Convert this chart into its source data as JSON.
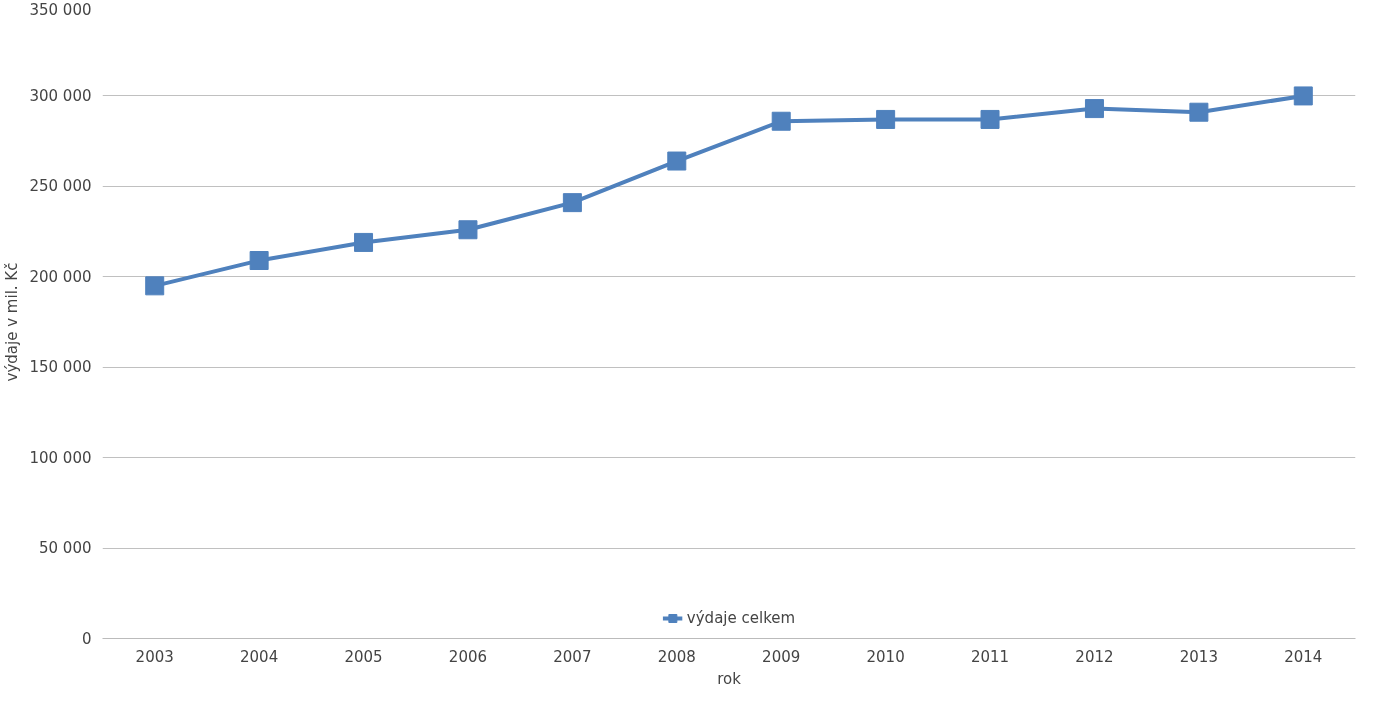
{
  "chart_data": {
    "type": "line",
    "xlabel": "rok",
    "ylabel": "výdaje v mil. Kč",
    "categories": [
      "2003",
      "2004",
      "2005",
      "2006",
      "2007",
      "2008",
      "2009",
      "2010",
      "2011",
      "2012",
      "2013",
      "2014"
    ],
    "series": [
      {
        "name": "výdaje celkem",
        "color": "#4f81bd",
        "values": [
          195000,
          209000,
          219000,
          226000,
          241000,
          264000,
          286000,
          287000,
          287000,
          293000,
          291000,
          300000
        ]
      }
    ],
    "ylim": [
      0,
      350000
    ],
    "yticks": [
      0,
      {
        "value": 50000,
        "label": "50 000"
      },
      {
        "value": 100000,
        "label": "100 000"
      },
      {
        "value": 150000,
        "label": "150 000"
      },
      {
        "value": 200000,
        "label": "200 000"
      },
      {
        "value": 250000,
        "label": "250 000"
      },
      {
        "value": 300000,
        "label": "300 000"
      },
      {
        "value": 350000,
        "label": "350 000"
      }
    ],
    "grid": "y",
    "legend": "bottom",
    "marker": "square",
    "line_style": "solid"
  }
}
